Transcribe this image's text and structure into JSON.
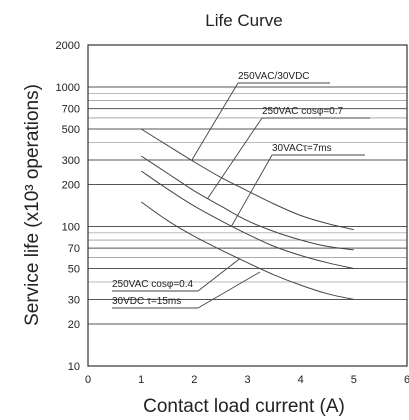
{
  "chart_data": {
    "type": "line",
    "title": "Life Curve",
    "xlabel": "Contact load current (A)",
    "ylabel": "Service life (x10³ operations)",
    "xlim": [
      0,
      6
    ],
    "ylim": [
      10,
      2000
    ],
    "yscale": "log",
    "x_ticks": [
      "0",
      "1",
      "2",
      "3",
      "4",
      "5",
      "6"
    ],
    "y_ticks": [
      "10",
      "20",
      "30",
      "50",
      "70",
      "100",
      "200",
      "300",
      "500",
      "700",
      "1000",
      "2000"
    ],
    "grid": true,
    "series": [
      {
        "name": "250VAC/30VDC",
        "x": [
          1,
          1.5,
          2,
          2.5,
          3,
          3.5,
          4,
          4.5,
          5
        ],
        "y": [
          500,
          380,
          290,
          225,
          180,
          145,
          120,
          105,
          95
        ]
      },
      {
        "name": "250VAC cosφ=0.7",
        "x": [
          1,
          1.5,
          2,
          2.5,
          3,
          3.5,
          4,
          4.5,
          5
        ],
        "y": [
          320,
          240,
          180,
          140,
          110,
          92,
          80,
          72,
          68
        ]
      },
      {
        "name": "30VACτ=7ms",
        "x": [
          1,
          1.5,
          2,
          2.5,
          3,
          3.5,
          4,
          4.5,
          5
        ],
        "y": [
          250,
          185,
          140,
          110,
          88,
          72,
          62,
          55,
          50
        ]
      },
      {
        "name": "250VAC cosφ=0.4 / 30VDC τ=15ms",
        "x": [
          1,
          1.5,
          2,
          2.5,
          3,
          3.5,
          4,
          4.5,
          5
        ],
        "y": [
          150,
          110,
          85,
          68,
          55,
          45,
          38,
          33,
          30
        ]
      }
    ],
    "annotations": [
      {
        "text": "250VAC/30VDC"
      },
      {
        "text": "250VAC cosφ=0.7"
      },
      {
        "text": "30VACτ=7ms"
      },
      {
        "text": "250VAC cosφ=0.4"
      },
      {
        "text": "30VDC τ=15ms"
      }
    ]
  }
}
